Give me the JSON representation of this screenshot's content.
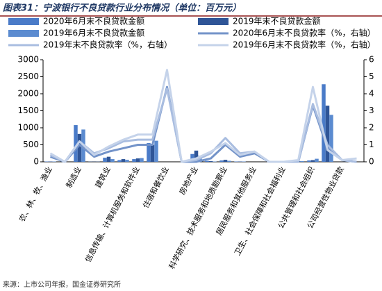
{
  "chart_data": {
    "type": "bar",
    "title": "图表31：宁波银行不良贷款行业分布情况（单位：百万元）",
    "source": "来源：上市公司年报，国金证券研究所",
    "categories": [
      "农、林、牧、渔业",
      null,
      "制造业",
      null,
      "建筑业",
      null,
      "信息传输、计算机服务和软件业",
      null,
      "住宿和餐饮业",
      null,
      "房地产业",
      null,
      "科学研究、技术服务和地质勘察业",
      null,
      "居民服务和其他服务业",
      null,
      "卫生、社会保障和社会福利业",
      null,
      "公共管理和社会组织",
      null,
      "公司经营性物业贷款",
      null
    ],
    "series": [
      {
        "name": "2020年6月末不良贷款金额",
        "type": "bar",
        "color": "#4a7bc8",
        "values": [
          10,
          0,
          1080,
          5,
          120,
          50,
          80,
          550,
          0,
          0,
          230,
          30,
          40,
          10,
          0,
          0,
          0,
          20,
          40,
          2280,
          0,
          0
        ]
      },
      {
        "name": "2019年末不良贷款金额",
        "type": "bar",
        "color": "#2f5597",
        "values": [
          10,
          0,
          820,
          5,
          150,
          80,
          100,
          500,
          0,
          0,
          330,
          20,
          60,
          10,
          0,
          0,
          0,
          20,
          50,
          1650,
          0,
          0
        ]
      },
      {
        "name": "2019年6月末不良贷款金额",
        "type": "bar",
        "color": "#5b8bd0",
        "values": [
          10,
          0,
          950,
          5,
          80,
          60,
          110,
          620,
          0,
          0,
          180,
          10,
          30,
          10,
          0,
          0,
          0,
          20,
          90,
          1380,
          0,
          0
        ]
      },
      {
        "name": "2020年6月末不良贷款率（%，右轴）",
        "type": "line",
        "axis": "y2",
        "color": "#7393c9",
        "values": [
          0.3,
          0,
          1.0,
          0.3,
          0.6,
          0.8,
          1.0,
          1.0,
          4.4,
          0,
          0,
          0.2,
          1.0,
          0.3,
          0.5,
          0,
          0,
          0,
          3.3,
          0.8,
          0.1,
          0
        ]
      },
      {
        "name": "2019年末不良贷款率（%，右轴）",
        "type": "line",
        "axis": "y2",
        "color": "#a9bde0",
        "values": [
          0.4,
          0,
          1.2,
          0.5,
          0.8,
          1.2,
          1.3,
          1.3,
          4.3,
          0,
          0.1,
          0.5,
          1.4,
          0.5,
          0.6,
          0,
          0,
          0,
          3.4,
          1.0,
          0.1,
          0
        ]
      },
      {
        "name": "2019年6月末不良贷款率（%，右轴）",
        "type": "line",
        "axis": "y2",
        "color": "#c5d3ea",
        "values": [
          0.5,
          0,
          1.2,
          0.4,
          0.9,
          1.3,
          1.6,
          1.6,
          5.4,
          0,
          0.2,
          0.6,
          1.1,
          0.4,
          0.6,
          0,
          0,
          0.1,
          4.4,
          0.7,
          0.1,
          0.2
        ]
      }
    ],
    "ylim": [
      0,
      3000
    ],
    "yticks": [
      0,
      500,
      {
        "value": 1000,
        "label": "1000"
      },
      1500,
      2000,
      2500,
      3000
    ],
    "y2lim": [
      0,
      6
    ],
    "y2ticks": [
      0,
      1,
      2,
      3,
      4,
      5,
      6
    ]
  }
}
